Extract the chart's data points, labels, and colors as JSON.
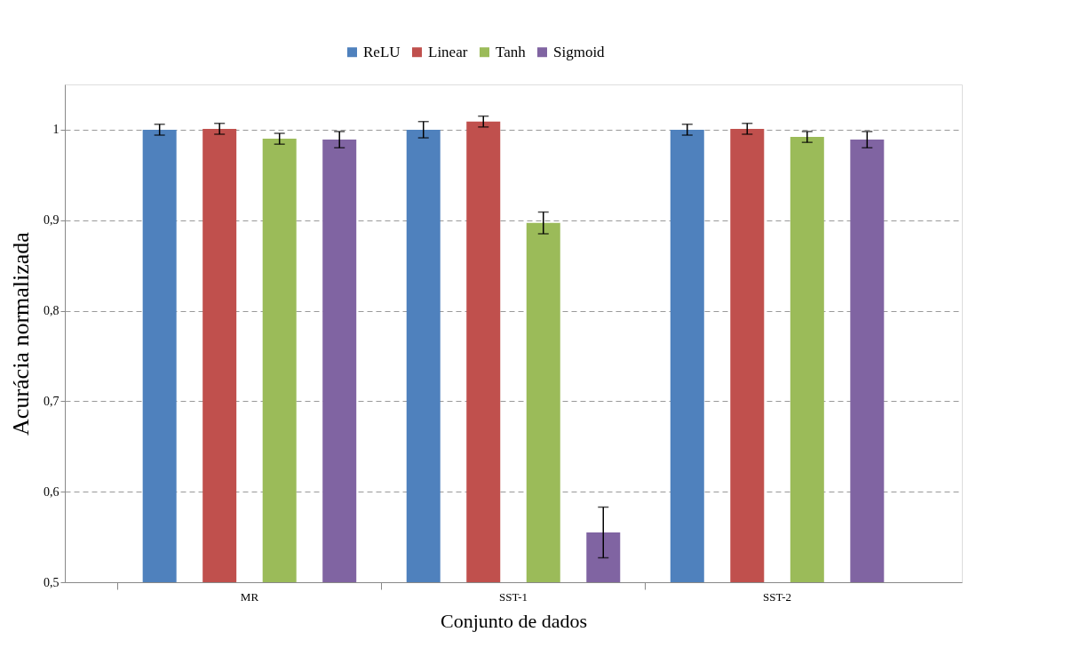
{
  "chart_data": {
    "type": "bar",
    "xlabel": "Conjunto de dados",
    "ylabel": "Acurácia normalizada",
    "categories": [
      "MR",
      "SST-1",
      "SST-2"
    ],
    "series": [
      {
        "name": "ReLU",
        "color": "#4f81bd",
        "values": [
          1.0,
          1.0,
          1.0
        ],
        "errors": [
          0.006,
          0.009,
          0.006
        ]
      },
      {
        "name": "Linear",
        "color": "#c0504d",
        "values": [
          1.001,
          1.009,
          1.001
        ],
        "errors": [
          0.006,
          0.006,
          0.006
        ]
      },
      {
        "name": "Tanh",
        "color": "#9bbb59",
        "values": [
          0.99,
          0.897,
          0.992
        ],
        "errors": [
          0.006,
          0.012,
          0.006
        ]
      },
      {
        "name": "Sigmoid",
        "color": "#8064a2",
        "values": [
          0.989,
          0.555,
          0.989
        ],
        "errors": [
          0.009,
          0.028,
          0.009
        ]
      }
    ],
    "ylim": [
      0.5,
      1.05
    ],
    "yticks": [
      {
        "value": 0.5,
        "label": "0,5"
      },
      {
        "value": 0.6,
        "label": "0,6"
      },
      {
        "value": 0.7,
        "label": "0,7"
      },
      {
        "value": 0.8,
        "label": "0,8"
      },
      {
        "value": 0.9,
        "label": "0,9"
      },
      1
    ],
    "grid": "y",
    "legend": "top"
  }
}
